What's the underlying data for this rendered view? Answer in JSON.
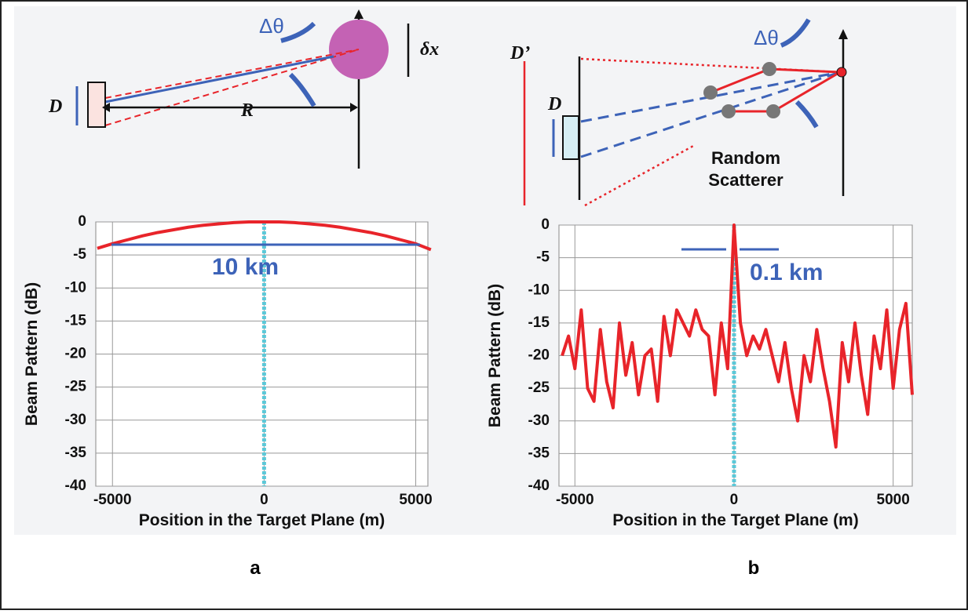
{
  "chart_data": [
    {
      "type": "line",
      "panel": "a",
      "ylabel": "Beam Pattern (dB)",
      "xlabel": "Position in the Target Plane (m)",
      "xlim": [
        -5550,
        5400
      ],
      "ylim": [
        -40,
        0
      ],
      "xticks": [
        -5000,
        0,
        5000
      ],
      "yticks": [
        0,
        -5,
        -10,
        -15,
        -20,
        -25,
        -30,
        -35,
        -40
      ],
      "grid": true,
      "x": [
        -5500,
        -5000,
        -4500,
        -4000,
        -3500,
        -3000,
        -2500,
        -2000,
        -1500,
        -1000,
        -500,
        0,
        500,
        1000,
        1500,
        2000,
        2500,
        3000,
        3500,
        4000,
        4500,
        5000,
        5500
      ],
      "series": [
        {
          "color": "#e8242a",
          "values": [
            -4,
            -3.3,
            -2.7,
            -2.1,
            -1.6,
            -1.2,
            -0.8,
            -0.5,
            -0.3,
            -0.1,
            0,
            0,
            0,
            -0.1,
            -0.3,
            -0.5,
            -0.8,
            -1.2,
            -1.6,
            -2.1,
            -2.7,
            -3.3,
            -4.2
          ]
        }
      ],
      "reference_line": {
        "x": 0,
        "color": "#5bc8d8"
      },
      "annotation": "10 km"
    },
    {
      "type": "line",
      "panel": "b",
      "ylabel": "Beam Pattern (dB)",
      "xlabel": "Position in the Target Plane (m)",
      "xlim": [
        -5500,
        5600
      ],
      "ylim": [
        -40,
        0
      ],
      "xticks": [
        -5000,
        0,
        5000
      ],
      "yticks": [
        0,
        -5,
        -10,
        -15,
        -20,
        -25,
        -30,
        -35,
        -40
      ],
      "grid": true,
      "x": [
        -5400,
        -5200,
        -5000,
        -4800,
        -4600,
        -4400,
        -4200,
        -4000,
        -3800,
        -3600,
        -3400,
        -3200,
        -3000,
        -2800,
        -2600,
        -2400,
        -2200,
        -2000,
        -1800,
        -1600,
        -1400,
        -1200,
        -1000,
        -800,
        -600,
        -400,
        -200,
        0,
        200,
        400,
        600,
        800,
        1000,
        1200,
        1400,
        1600,
        1800,
        2000,
        2200,
        2400,
        2600,
        2800,
        3000,
        3200,
        3400,
        3600,
        3800,
        4000,
        4200,
        4400,
        4600,
        4800,
        5000,
        5200,
        5400,
        5600
      ],
      "series": [
        {
          "color": "#e8242a",
          "values": [
            -20,
            -17,
            -22,
            -13,
            -25,
            -27,
            -16,
            -24,
            -28,
            -15,
            -23,
            -18,
            -26,
            -20,
            -19,
            -27,
            -14,
            -20,
            -13,
            -15,
            -17,
            -13,
            -16,
            -17,
            -26,
            -15,
            -22,
            0,
            -15,
            -20,
            -17,
            -19,
            -16,
            -20,
            -24,
            -18,
            -25,
            -30,
            -20,
            -24,
            -16,
            -22,
            -27,
            -34,
            -18,
            -24,
            -15,
            -23,
            -29,
            -17,
            -22,
            -13,
            -25,
            -16,
            -12,
            -26
          ]
        }
      ],
      "reference_line": {
        "x": 0,
        "color": "#5bc8d8"
      },
      "annotation": "0.1 km"
    }
  ],
  "figure": {
    "panel_labels": [
      "a",
      "b"
    ],
    "diagram_a": {
      "angle": "Δθ",
      "displacement": "δx",
      "aperture": "D",
      "range": "R"
    },
    "diagram_b": {
      "angle": "Δθ",
      "aperture": "D",
      "effective_aperture": "D’",
      "scatterer": "Random Scatterer"
    }
  }
}
